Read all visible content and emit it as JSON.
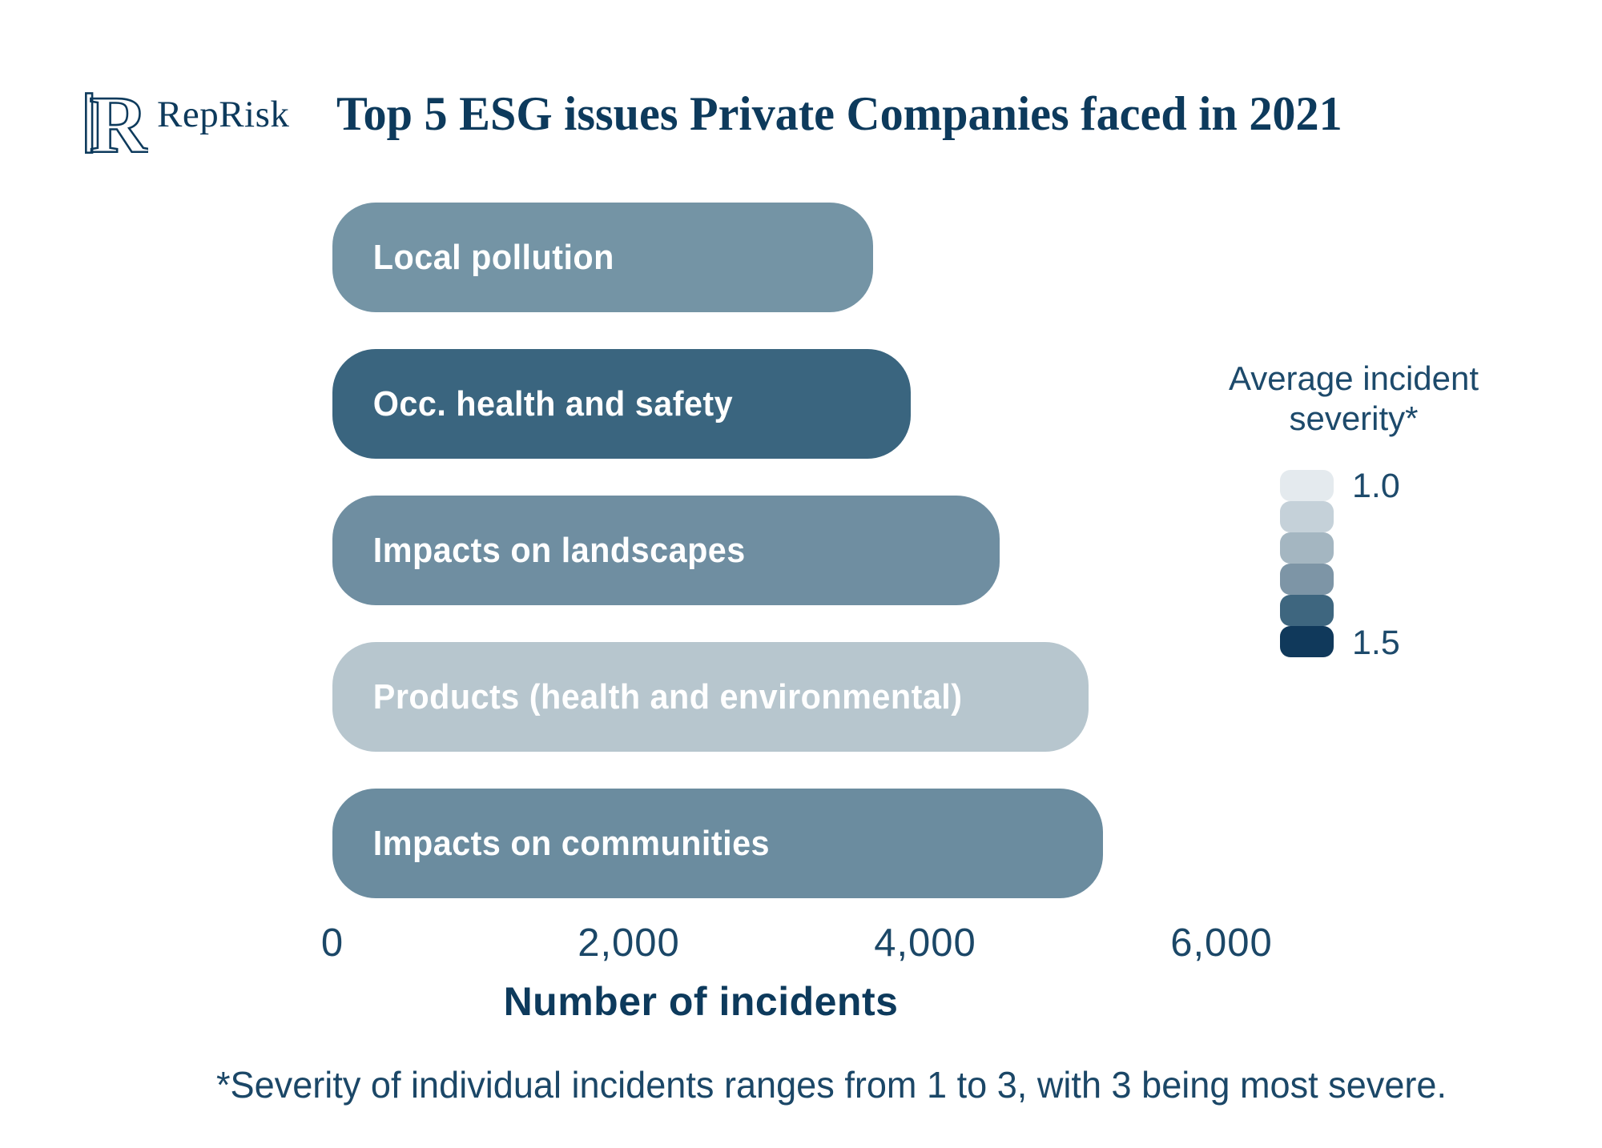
{
  "brand": {
    "name": "RepRisk",
    "logo_icon": "reprisk-monogram",
    "logo_color": "#0d3a5c"
  },
  "title": "Top 5 ESG issues Private Companies faced in 2021",
  "colors": {
    "title_text": "#0d3a5c",
    "body_text": "#1b4767",
    "legend_text": "#1d4a6b",
    "bar_label_text": "#ffffff",
    "background": "#ffffff"
  },
  "chart_data": {
    "type": "bar",
    "orientation": "horizontal",
    "title": "Top 5 ESG issues Private Companies faced in 2021",
    "categories": [
      "Local pollution",
      "Occ. health and safety",
      "Impacts on landscapes",
      "Products (health and environmental)",
      "Impacts on communities"
    ],
    "values": [
      3650,
      3900,
      4500,
      5100,
      5200
    ],
    "bar_colors": [
      "#7494a5",
      "#3a657f",
      "#6f8ea1",
      "#b7c6ce",
      "#6b8c9f"
    ],
    "xlabel": "Number of incidents",
    "xlim": [
      0,
      6000
    ],
    "xticks": [
      0,
      2000,
      4000,
      6000
    ],
    "xtick_labels": [
      "0",
      "2,000",
      "4,000",
      "6,000"
    ],
    "grid": false,
    "legend": {
      "position": "right",
      "title_line1": "Average incident",
      "title_line2": "severity*",
      "min_label": "1.0",
      "max_label": "1.5",
      "swatches": [
        "#e4eaee",
        "#c5d1d9",
        "#a4b6c1",
        "#7d95a6",
        "#3e667f",
        "#10395b"
      ]
    },
    "footnote": "*Severity of individual incidents ranges from 1 to 3, with 3 being most severe."
  }
}
